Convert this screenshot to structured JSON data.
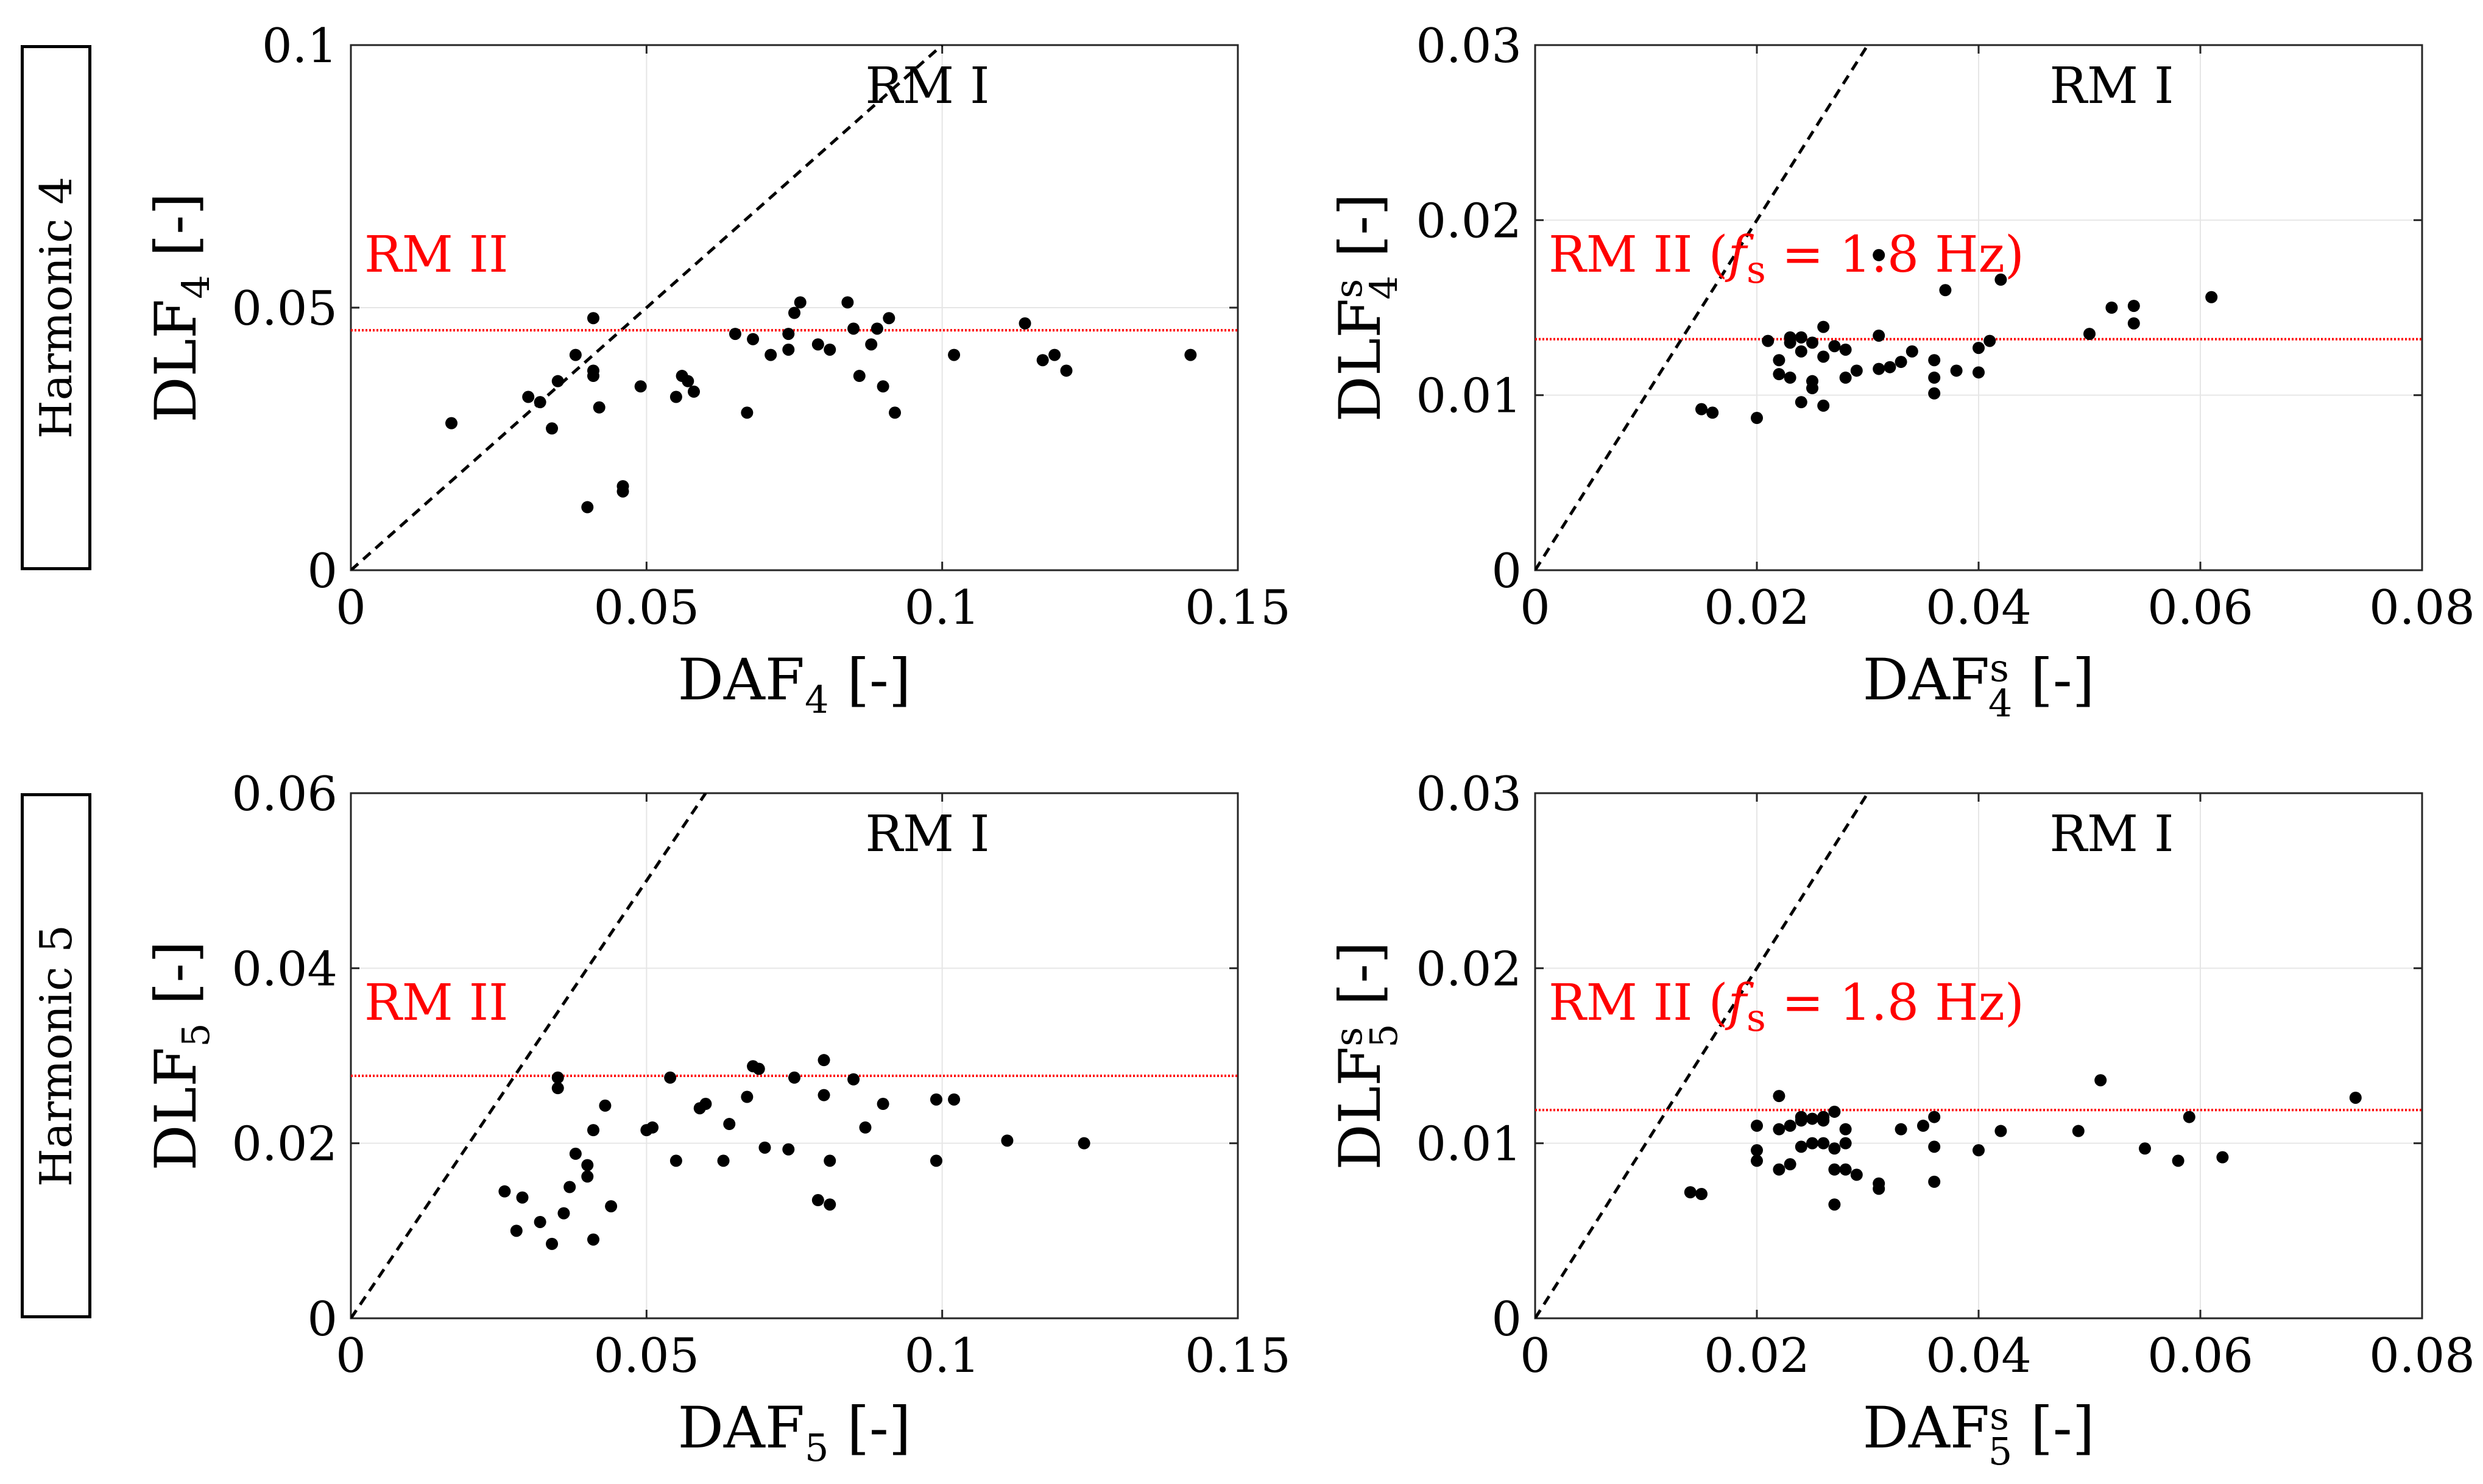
{
  "row_labels": [
    "Harmonic 4",
    "Harmonic 5"
  ],
  "colors": {
    "points": "#000000",
    "reference": "#ff0000",
    "grid": "#e6e6e6",
    "axes": "#262626"
  },
  "chart_data": [
    {
      "id": "h4-daf",
      "type": "scatter",
      "xlabel": "DAF",
      "xlabel_sub": "4",
      "xlabel_sup": "",
      "ylabel": "DLF",
      "ylabel_sub": "4",
      "ylabel_sup": "",
      "unit": "[-]",
      "xlim": [
        0,
        0.15
      ],
      "ylim": [
        0,
        0.1
      ],
      "xticks": [
        0,
        0.05,
        0.1,
        0.15
      ],
      "xtick_labels": [
        "0",
        "0.05",
        "0.1",
        "0.15"
      ],
      "yticks": [
        0,
        0.05,
        0.1
      ],
      "ytick_labels": [
        "0",
        "0.05",
        "0.1"
      ],
      "identity_line_label": "RM I",
      "reference_line": {
        "label": "RM II",
        "label_fs": "",
        "label_eq": "",
        "label_unit": "",
        "y": 0.0457
      },
      "points": [
        [
          0.017,
          0.028
        ],
        [
          0.03,
          0.033
        ],
        [
          0.032,
          0.032
        ],
        [
          0.034,
          0.027
        ],
        [
          0.035,
          0.036
        ],
        [
          0.038,
          0.041
        ],
        [
          0.04,
          0.012
        ],
        [
          0.041,
          0.048
        ],
        [
          0.041,
          0.038
        ],
        [
          0.041,
          0.037
        ],
        [
          0.042,
          0.031
        ],
        [
          0.046,
          0.016
        ],
        [
          0.046,
          0.015
        ],
        [
          0.049,
          0.035
        ],
        [
          0.055,
          0.033
        ],
        [
          0.056,
          0.037
        ],
        [
          0.057,
          0.036
        ],
        [
          0.058,
          0.034
        ],
        [
          0.065,
          0.045
        ],
        [
          0.067,
          0.03
        ],
        [
          0.068,
          0.044
        ],
        [
          0.071,
          0.041
        ],
        [
          0.074,
          0.042
        ],
        [
          0.074,
          0.045
        ],
        [
          0.075,
          0.049
        ],
        [
          0.076,
          0.051
        ],
        [
          0.079,
          0.043
        ],
        [
          0.081,
          0.042
        ],
        [
          0.084,
          0.051
        ],
        [
          0.085,
          0.046
        ],
        [
          0.086,
          0.037
        ],
        [
          0.088,
          0.043
        ],
        [
          0.089,
          0.046
        ],
        [
          0.09,
          0.035
        ],
        [
          0.091,
          0.048
        ],
        [
          0.092,
          0.03
        ],
        [
          0.102,
          0.041
        ],
        [
          0.114,
          0.047
        ],
        [
          0.117,
          0.04
        ],
        [
          0.119,
          0.041
        ],
        [
          0.121,
          0.038
        ],
        [
          0.142,
          0.041
        ]
      ]
    },
    {
      "id": "h4-daf-s",
      "type": "scatter",
      "xlabel": "DAF",
      "xlabel_sub": "4",
      "xlabel_sup": "s",
      "ylabel": "DLF",
      "ylabel_sub": "4",
      "ylabel_sup": "s",
      "unit": "[-]",
      "xlim": [
        0,
        0.08
      ],
      "ylim": [
        0,
        0.03
      ],
      "xticks": [
        0,
        0.02,
        0.04,
        0.06,
        0.08
      ],
      "xtick_labels": [
        "0",
        "0.02",
        "0.04",
        "0.06",
        "0.08"
      ],
      "yticks": [
        0,
        0.01,
        0.02,
        0.03
      ],
      "ytick_labels": [
        "0",
        "0.01",
        "0.02",
        "0.03"
      ],
      "identity_line_label": "RM I",
      "reference_line": {
        "label": "RM II (",
        "label_fs": "f",
        "label_eq": " = 1.8 Hz)",
        "label_unit": "s",
        "y": 0.0132
      },
      "points": [
        [
          0.015,
          0.0092
        ],
        [
          0.016,
          0.009
        ],
        [
          0.02,
          0.0087
        ],
        [
          0.021,
          0.0131
        ],
        [
          0.022,
          0.012
        ],
        [
          0.022,
          0.0112
        ],
        [
          0.023,
          0.013
        ],
        [
          0.023,
          0.011
        ],
        [
          0.023,
          0.0133
        ],
        [
          0.024,
          0.0125
        ],
        [
          0.024,
          0.0096
        ],
        [
          0.024,
          0.0133
        ],
        [
          0.025,
          0.013
        ],
        [
          0.025,
          0.0108
        ],
        [
          0.025,
          0.0104
        ],
        [
          0.026,
          0.0122
        ],
        [
          0.026,
          0.0139
        ],
        [
          0.026,
          0.0094
        ],
        [
          0.027,
          0.0128
        ],
        [
          0.028,
          0.011
        ],
        [
          0.028,
          0.0126
        ],
        [
          0.029,
          0.0114
        ],
        [
          0.031,
          0.0134
        ],
        [
          0.031,
          0.0115
        ],
        [
          0.031,
          0.018
        ],
        [
          0.032,
          0.0116
        ],
        [
          0.033,
          0.0119
        ],
        [
          0.034,
          0.0125
        ],
        [
          0.036,
          0.011
        ],
        [
          0.036,
          0.012
        ],
        [
          0.036,
          0.0101
        ],
        [
          0.037,
          0.016
        ],
        [
          0.038,
          0.0114
        ],
        [
          0.04,
          0.0113
        ],
        [
          0.04,
          0.0127
        ],
        [
          0.041,
          0.0131
        ],
        [
          0.042,
          0.0166
        ],
        [
          0.05,
          0.0135
        ],
        [
          0.052,
          0.015
        ],
        [
          0.054,
          0.0151
        ],
        [
          0.054,
          0.0141
        ],
        [
          0.061,
          0.0156
        ]
      ]
    },
    {
      "id": "h5-daf",
      "type": "scatter",
      "xlabel": "DAF",
      "xlabel_sub": "5",
      "xlabel_sup": "",
      "ylabel": "DLF",
      "ylabel_sub": "5",
      "ylabel_sup": "",
      "unit": "[-]",
      "xlim": [
        0,
        0.15
      ],
      "ylim": [
        0,
        0.06
      ],
      "xticks": [
        0,
        0.05,
        0.1,
        0.15
      ],
      "xtick_labels": [
        "0",
        "0.05",
        "0.1",
        "0.15"
      ],
      "yticks": [
        0,
        0.02,
        0.04,
        0.06
      ],
      "ytick_labels": [
        "0",
        "0.02",
        "0.04",
        "0.06"
      ],
      "identity_line_label": "RM I",
      "reference_line": {
        "label": "RM II",
        "label_fs": "",
        "label_eq": "",
        "label_unit": "",
        "y": 0.0277
      },
      "points": [
        [
          0.026,
          0.0145
        ],
        [
          0.028,
          0.01
        ],
        [
          0.029,
          0.0138
        ],
        [
          0.032,
          0.011
        ],
        [
          0.034,
          0.0085
        ],
        [
          0.035,
          0.0275
        ],
        [
          0.035,
          0.0263
        ],
        [
          0.036,
          0.012
        ],
        [
          0.037,
          0.015
        ],
        [
          0.038,
          0.0188
        ],
        [
          0.04,
          0.0175
        ],
        [
          0.04,
          0.0162
        ],
        [
          0.041,
          0.009
        ],
        [
          0.041,
          0.0215
        ],
        [
          0.043,
          0.0243
        ],
        [
          0.044,
          0.0128
        ],
        [
          0.05,
          0.0215
        ],
        [
          0.051,
          0.0218
        ],
        [
          0.054,
          0.0275
        ],
        [
          0.055,
          0.018
        ],
        [
          0.059,
          0.024
        ],
        [
          0.06,
          0.0245
        ],
        [
          0.063,
          0.018
        ],
        [
          0.064,
          0.0222
        ],
        [
          0.067,
          0.0253
        ],
        [
          0.068,
          0.0288
        ],
        [
          0.069,
          0.0285
        ],
        [
          0.07,
          0.0195
        ],
        [
          0.074,
          0.0193
        ],
        [
          0.075,
          0.0275
        ],
        [
          0.079,
          0.0135
        ],
        [
          0.08,
          0.0295
        ],
        [
          0.08,
          0.0255
        ],
        [
          0.081,
          0.018
        ],
        [
          0.081,
          0.013
        ],
        [
          0.085,
          0.0273
        ],
        [
          0.087,
          0.0218
        ],
        [
          0.09,
          0.0245
        ],
        [
          0.099,
          0.025
        ],
        [
          0.099,
          0.018
        ],
        [
          0.102,
          0.025
        ],
        [
          0.111,
          0.0203
        ],
        [
          0.124,
          0.02
        ]
      ]
    },
    {
      "id": "h5-daf-s",
      "type": "scatter",
      "xlabel": "DAF",
      "xlabel_sub": "5",
      "xlabel_sup": "s",
      "ylabel": "DLF",
      "ylabel_sub": "5",
      "ylabel_sup": "s",
      "unit": "[-]",
      "xlim": [
        0,
        0.08
      ],
      "ylim": [
        0,
        0.03
      ],
      "xticks": [
        0,
        0.02,
        0.04,
        0.06,
        0.08
      ],
      "xtick_labels": [
        "0",
        "0.02",
        "0.04",
        "0.06",
        "0.08"
      ],
      "yticks": [
        0,
        0.01,
        0.02,
        0.03
      ],
      "ytick_labels": [
        "0",
        "0.01",
        "0.02",
        "0.03"
      ],
      "identity_line_label": "RM I",
      "reference_line": {
        "label": "RM II (",
        "label_fs": "f",
        "label_eq": " = 1.8 Hz)",
        "label_unit": "s",
        "y": 0.0119
      },
      "points": [
        [
          0.014,
          0.0072
        ],
        [
          0.015,
          0.0071
        ],
        [
          0.02,
          0.009
        ],
        [
          0.02,
          0.011
        ],
        [
          0.02,
          0.0096
        ],
        [
          0.022,
          0.0127
        ],
        [
          0.022,
          0.0085
        ],
        [
          0.022,
          0.0108
        ],
        [
          0.023,
          0.0088
        ],
        [
          0.023,
          0.011
        ],
        [
          0.024,
          0.0113
        ],
        [
          0.024,
          0.0098
        ],
        [
          0.024,
          0.0115
        ],
        [
          0.025,
          0.01
        ],
        [
          0.025,
          0.0114
        ],
        [
          0.026,
          0.0113
        ],
        [
          0.026,
          0.01
        ],
        [
          0.026,
          0.0115
        ],
        [
          0.027,
          0.0118
        ],
        [
          0.027,
          0.0085
        ],
        [
          0.027,
          0.0065
        ],
        [
          0.027,
          0.0097
        ],
        [
          0.028,
          0.0108
        ],
        [
          0.028,
          0.01
        ],
        [
          0.028,
          0.0085
        ],
        [
          0.029,
          0.0082
        ],
        [
          0.031,
          0.0077
        ],
        [
          0.031,
          0.0074
        ],
        [
          0.033,
          0.0108
        ],
        [
          0.035,
          0.011
        ],
        [
          0.036,
          0.0098
        ],
        [
          0.036,
          0.0115
        ],
        [
          0.036,
          0.0078
        ],
        [
          0.04,
          0.0096
        ],
        [
          0.042,
          0.0107
        ],
        [
          0.049,
          0.0107
        ],
        [
          0.051,
          0.0136
        ],
        [
          0.055,
          0.0097
        ],
        [
          0.058,
          0.009
        ],
        [
          0.059,
          0.0115
        ],
        [
          0.062,
          0.0092
        ],
        [
          0.074,
          0.0126
        ]
      ]
    }
  ]
}
